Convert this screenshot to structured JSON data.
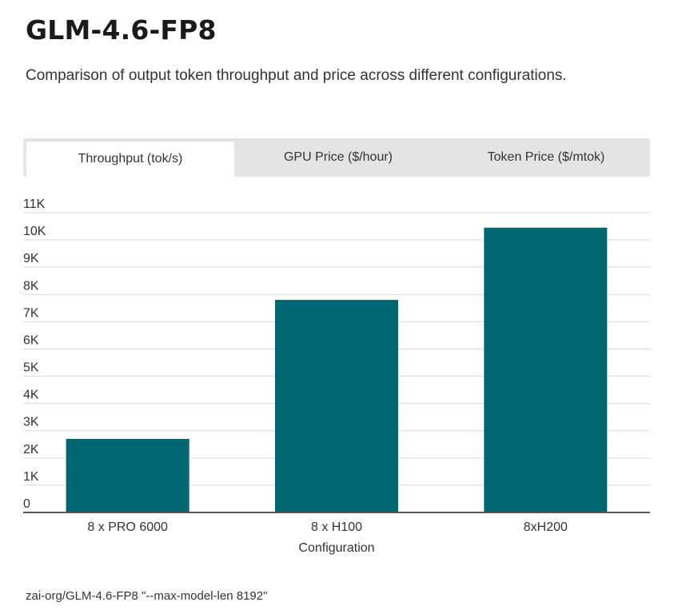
{
  "page": {
    "title": "GLM-4.6-FP8",
    "subtitle": "Comparison of output token throughput and price across different configurations.",
    "footnote": "zai-org/GLM-4.6-FP8 \"--max-model-len 8192\""
  },
  "tabs": [
    {
      "label": "Throughput (tok/s)",
      "active": true
    },
    {
      "label": "GPU Price ($/hour)",
      "active": false
    },
    {
      "label": "Token Price ($/mtok)",
      "active": false
    }
  ],
  "colors": {
    "bar": "#006670",
    "grid": "#d9d9d9",
    "axis": "#555555"
  },
  "chart_data": {
    "type": "bar",
    "categories": [
      "8 x PRO 6000",
      "8 x H100",
      "8xH200"
    ],
    "values": [
      2700,
      7800,
      10450
    ],
    "title": "",
    "xlabel": "Configuration",
    "ylabel": "",
    "ylim": [
      0,
      11000
    ],
    "yticks": [
      0,
      1000,
      2000,
      3000,
      4000,
      5000,
      6000,
      7000,
      8000,
      9000,
      10000,
      11000
    ],
    "ytick_labels": [
      "0",
      "1K",
      "2K",
      "3K",
      "4K",
      "5K",
      "6K",
      "7K",
      "8K",
      "9K",
      "10K",
      "11K"
    ],
    "grid": true,
    "legend": "none"
  }
}
